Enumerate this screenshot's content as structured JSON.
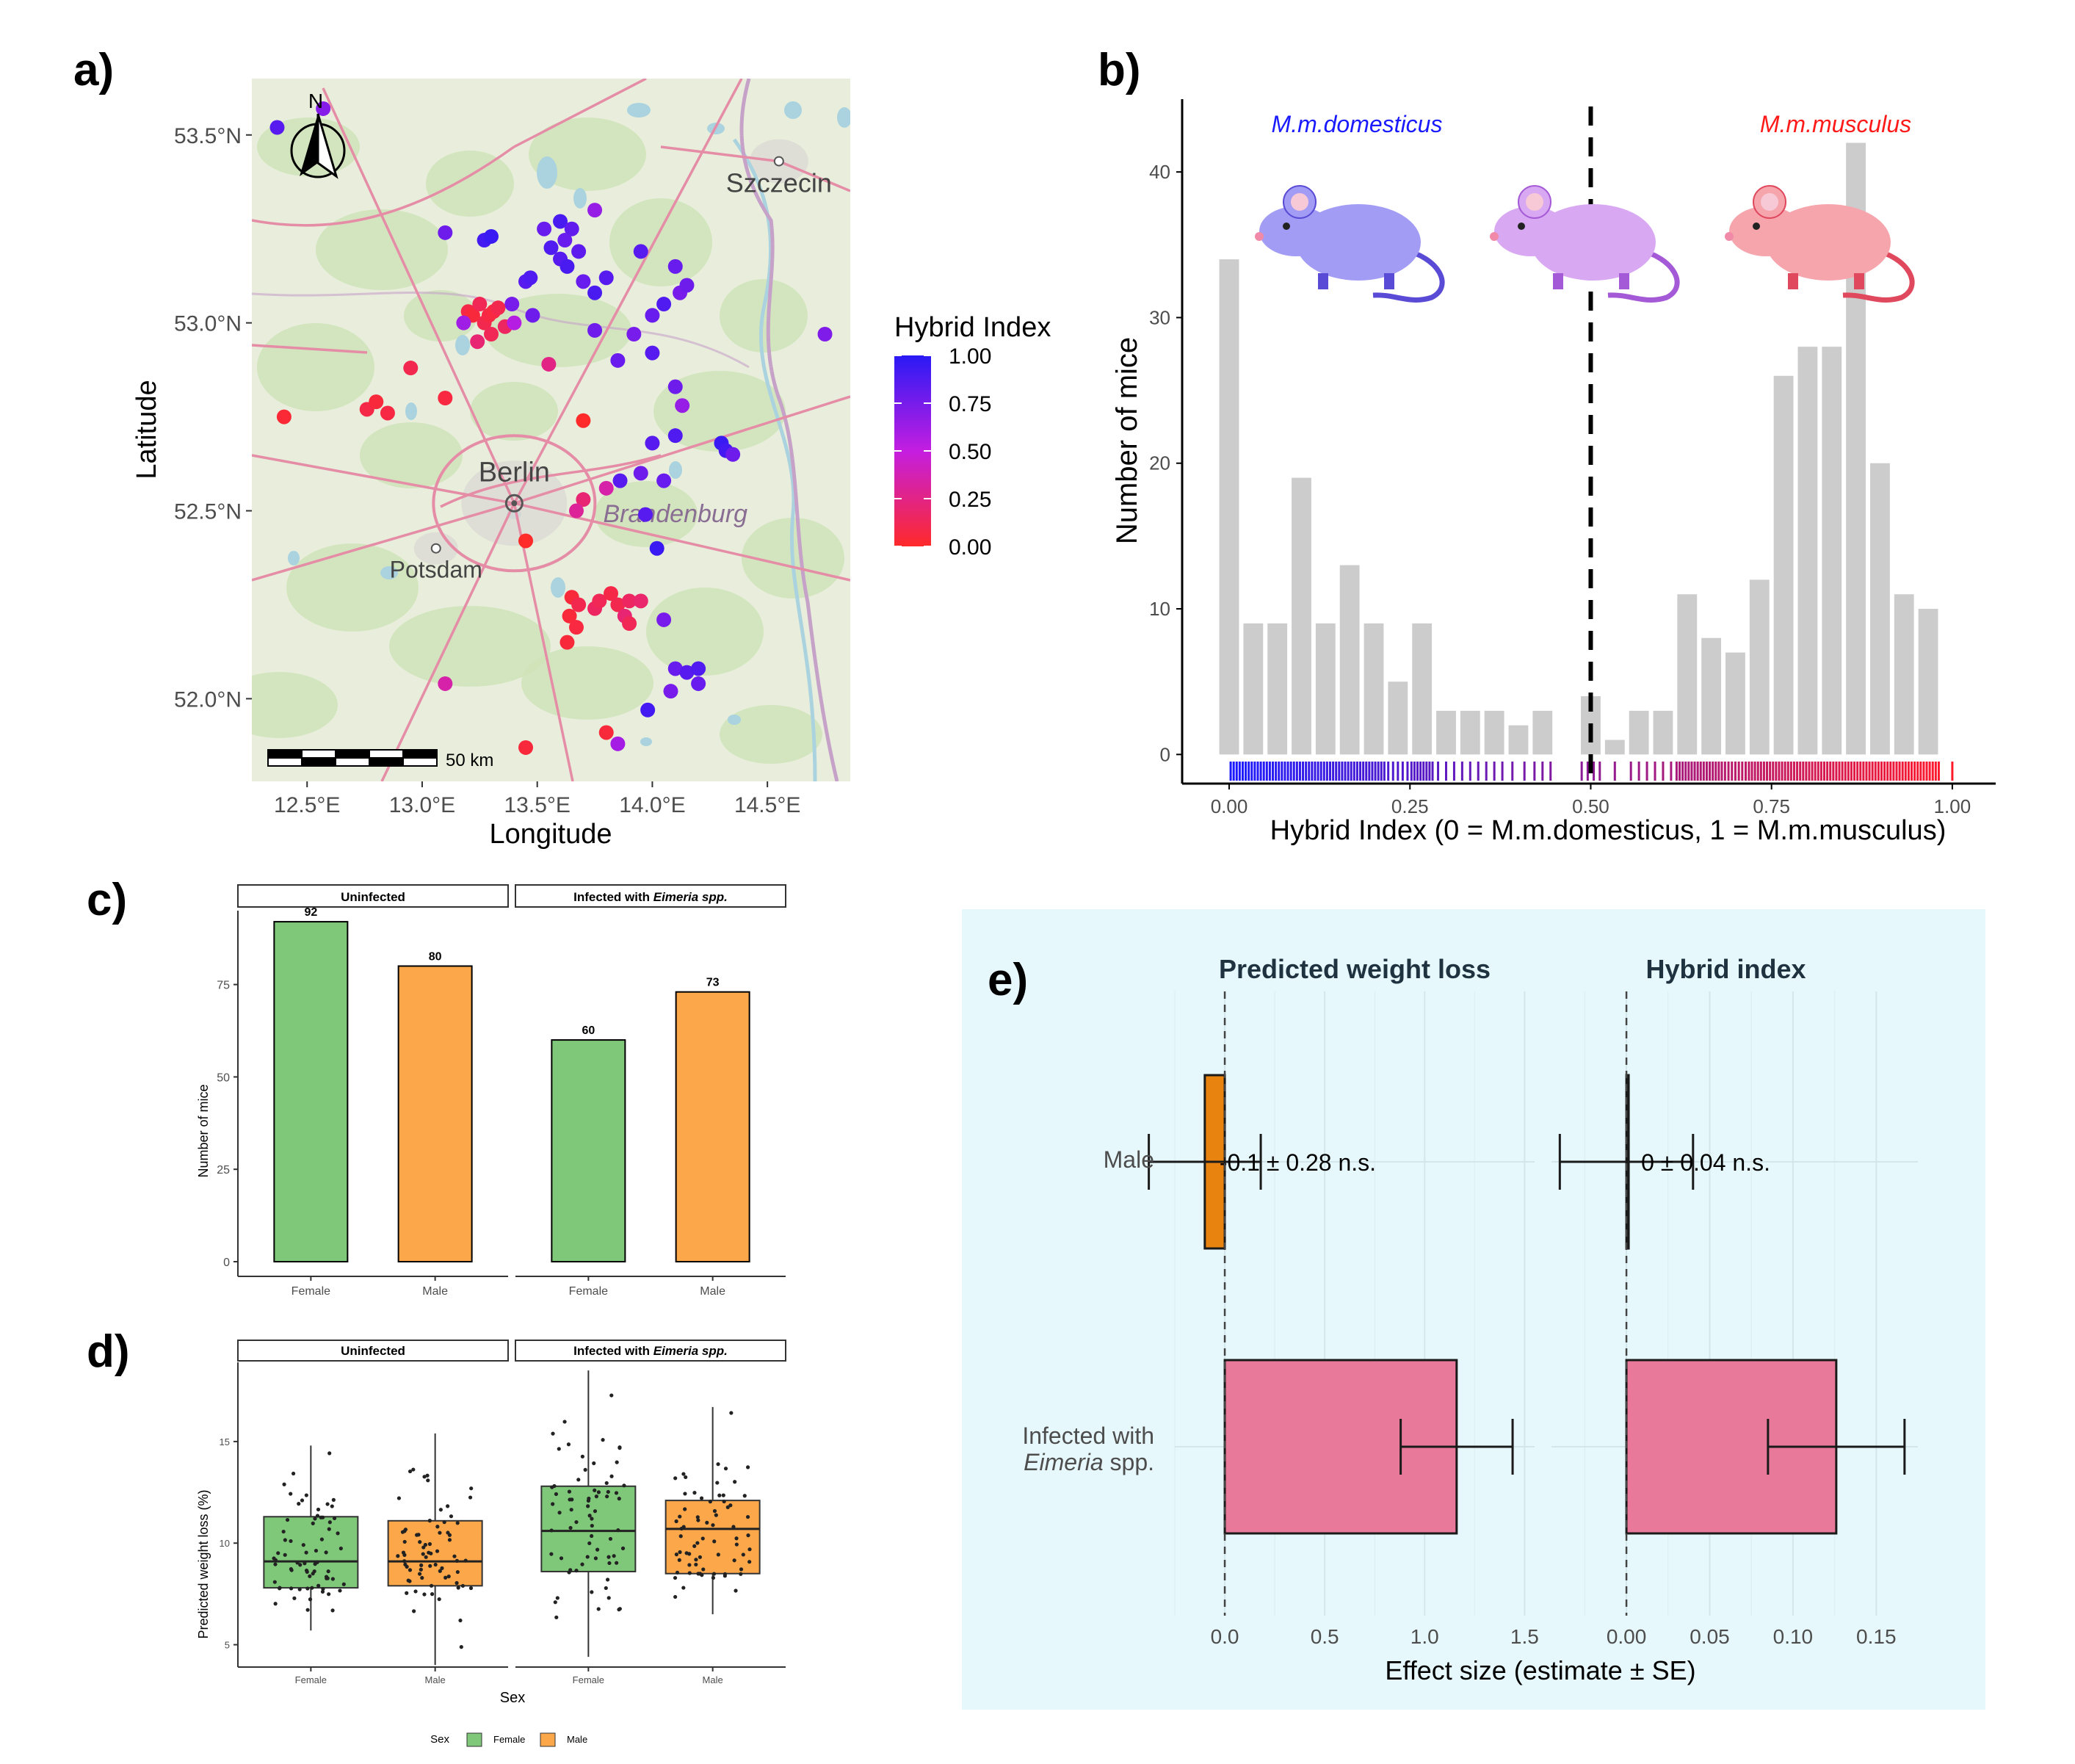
{
  "panels": {
    "a": "a)",
    "b": "b)",
    "c": "c)",
    "d": "d)",
    "e": "e)"
  },
  "map": {
    "xlabel": "Longitude",
    "ylabel": "Latitude",
    "xticks": [
      "12.5°E",
      "13.0°E",
      "13.5°E",
      "14.0°E",
      "14.5°E"
    ],
    "xtick_values": [
      12.5,
      13.0,
      13.5,
      14.0,
      14.5
    ],
    "yticks": [
      "52.0°N",
      "52.5°N",
      "53.0°N",
      "53.5°N"
    ],
    "ytick_values": [
      52.0,
      52.5,
      53.0,
      53.5
    ],
    "xlim": [
      12.26,
      14.86
    ],
    "ylim": [
      51.78,
      53.65
    ],
    "places": [
      {
        "name": "Berlin",
        "lon": 13.4,
        "lat": 52.52,
        "type": "capital"
      },
      {
        "name": "Potsdam",
        "lon": 13.06,
        "lat": 52.4,
        "type": "city"
      },
      {
        "name": "Szczecin",
        "lon": 14.55,
        "lat": 53.43,
        "type": "city"
      },
      {
        "name": "Brandenburg",
        "lon": 14.1,
        "lat": 52.47,
        "type": "region"
      }
    ],
    "north_label": "N",
    "scale_label": "50 km",
    "legend": {
      "title": "Hybrid Index",
      "ticks": [
        "1.00",
        "0.75",
        "0.50",
        "0.25",
        "0.00"
      ],
      "tick_values": [
        1.0,
        0.75,
        0.5,
        0.25,
        0.0
      ]
    },
    "colors": {
      "low": "#ff2a2a",
      "mid": "#c41ee0",
      "high": "#2a1af5",
      "land": "#e8eedb",
      "forest": "#cfe3b8",
      "water": "#aad3df",
      "road": "#e58ca6",
      "border": "#c6a2c9"
    },
    "points": [
      [
        12.37,
        53.52,
        0.85
      ],
      [
        12.57,
        53.57,
        0.7
      ],
      [
        13.1,
        53.24,
        0.78
      ],
      [
        13.27,
        53.22,
        0.92
      ],
      [
        13.3,
        53.23,
        0.95
      ],
      [
        13.6,
        53.27,
        0.9
      ],
      [
        13.65,
        53.25,
        0.82
      ],
      [
        13.75,
        53.3,
        0.65
      ],
      [
        13.53,
        53.25,
        0.8
      ],
      [
        13.56,
        53.2,
        0.88
      ],
      [
        13.62,
        53.22,
        0.8
      ],
      [
        13.68,
        53.19,
        0.83
      ],
      [
        13.6,
        53.17,
        0.85
      ],
      [
        13.63,
        53.15,
        0.9
      ],
      [
        13.95,
        53.19,
        0.85
      ],
      [
        14.1,
        53.15,
        0.8
      ],
      [
        14.12,
        53.08,
        0.75
      ],
      [
        14.15,
        53.1,
        0.78
      ],
      [
        14.05,
        53.05,
        0.88
      ],
      [
        14.0,
        53.02,
        0.8
      ],
      [
        13.45,
        53.11,
        0.85
      ],
      [
        13.47,
        53.12,
        0.88
      ],
      [
        13.39,
        53.05,
        0.75
      ],
      [
        13.48,
        53.02,
        0.78
      ],
      [
        13.7,
        53.11,
        0.8
      ],
      [
        13.8,
        53.12,
        0.85
      ],
      [
        13.75,
        53.08,
        0.9
      ],
      [
        13.27,
        53.0,
        0.1
      ],
      [
        13.2,
        53.03,
        0.08
      ],
      [
        13.22,
        53.02,
        0.05
      ],
      [
        13.25,
        53.05,
        0.12
      ],
      [
        13.29,
        53.02,
        0.07
      ],
      [
        13.31,
        53.03,
        0.06
      ],
      [
        13.33,
        53.04,
        0.1
      ],
      [
        13.36,
        52.99,
        0.15
      ],
      [
        13.3,
        52.97,
        0.12
      ],
      [
        13.24,
        52.95,
        0.2
      ],
      [
        13.18,
        53.0,
        0.62
      ],
      [
        13.4,
        53.0,
        0.55
      ],
      [
        13.55,
        52.89,
        0.25
      ],
      [
        13.75,
        52.98,
        0.78
      ],
      [
        13.92,
        52.97,
        0.75
      ],
      [
        13.85,
        52.9,
        0.8
      ],
      [
        14.0,
        52.92,
        0.85
      ],
      [
        14.1,
        52.83,
        0.78
      ],
      [
        14.13,
        52.78,
        0.65
      ],
      [
        14.1,
        52.7,
        0.88
      ],
      [
        14.0,
        52.68,
        0.85
      ],
      [
        13.95,
        52.6,
        0.78
      ],
      [
        14.05,
        52.58,
        0.8
      ],
      [
        13.86,
        52.58,
        0.85
      ],
      [
        14.3,
        52.68,
        0.95
      ],
      [
        14.32,
        52.66,
        0.92
      ],
      [
        14.35,
        52.65,
        0.78
      ],
      [
        14.75,
        52.97,
        0.72
      ],
      [
        12.95,
        52.88,
        0.1
      ],
      [
        12.76,
        52.77,
        0.08
      ],
      [
        12.8,
        52.79,
        0.05
      ],
      [
        12.85,
        52.76,
        0.07
      ],
      [
        12.4,
        52.75,
        0.03
      ],
      [
        13.1,
        52.8,
        0.06
      ],
      [
        13.7,
        52.74,
        0.0
      ],
      [
        13.7,
        52.53,
        0.2
      ],
      [
        13.67,
        52.5,
        0.3
      ],
      [
        13.8,
        52.56,
        0.35
      ],
      [
        13.97,
        52.49,
        0.85
      ],
      [
        13.45,
        52.42,
        0.0
      ],
      [
        14.02,
        52.4,
        0.95
      ],
      [
        13.65,
        52.27,
        0.05
      ],
      [
        13.68,
        52.25,
        0.1
      ],
      [
        13.64,
        52.22,
        0.04
      ],
      [
        13.67,
        52.19,
        0.06
      ],
      [
        13.75,
        52.24,
        0.15
      ],
      [
        13.77,
        52.26,
        0.12
      ],
      [
        13.82,
        52.28,
        0.08
      ],
      [
        13.85,
        52.25,
        0.1
      ],
      [
        13.9,
        52.26,
        0.15
      ],
      [
        13.88,
        52.22,
        0.2
      ],
      [
        13.95,
        52.26,
        0.18
      ],
      [
        13.9,
        52.2,
        0.12
      ],
      [
        13.63,
        52.15,
        0.05
      ],
      [
        14.05,
        52.21,
        0.75
      ],
      [
        14.1,
        52.08,
        0.8
      ],
      [
        14.15,
        52.07,
        0.85
      ],
      [
        14.2,
        52.08,
        0.88
      ],
      [
        14.2,
        52.04,
        0.8
      ],
      [
        14.08,
        52.02,
        0.75
      ],
      [
        13.98,
        51.97,
        0.92
      ],
      [
        13.1,
        52.04,
        0.35
      ],
      [
        13.45,
        51.87,
        0.05
      ],
      [
        13.8,
        51.91,
        0.05
      ],
      [
        13.85,
        51.88,
        0.6
      ]
    ]
  },
  "chart_data": [
    {
      "panel": "b",
      "type": "bar",
      "ylabel": "Number of mice",
      "xlabel": "Hybrid Index (0 = M.m.domesticus, 1 = M.m.musculus)",
      "annotations": {
        "left": "M.m.domesticus",
        "right": "M.m.musculus"
      },
      "annotation_colors": {
        "left": "#1a1aff",
        "right": "#ff1a1a"
      },
      "xlim": [
        -0.065,
        1.06
      ],
      "ylim": [
        -2,
        45
      ],
      "xticks": [
        "0.00",
        "0.25",
        "0.50",
        "0.75",
        "1.00"
      ],
      "xtick_values": [
        0,
        0.25,
        0.5,
        0.75,
        1.0
      ],
      "yticks": [
        "0",
        "10",
        "20",
        "30",
        "40"
      ],
      "ytick_values": [
        0,
        10,
        20,
        30,
        40
      ],
      "bin_centers": [
        0.0,
        0.03333,
        0.06667,
        0.1,
        0.13333,
        0.16667,
        0.2,
        0.23333,
        0.26667,
        0.3,
        0.33333,
        0.36667,
        0.4,
        0.43333,
        0.5,
        0.53333,
        0.56667,
        0.6,
        0.63333,
        0.66667,
        0.7,
        0.73333,
        0.76667,
        0.8,
        0.83333,
        0.86667,
        0.9,
        0.93333,
        0.96667,
        1.0
      ],
      "values": [
        34,
        9,
        9,
        19,
        9,
        13,
        9,
        5,
        9,
        3,
        3,
        3,
        2,
        3,
        4,
        1,
        3,
        3,
        11,
        8,
        7,
        12,
        26,
        28,
        28,
        42,
        20,
        11,
        10,
        0
      ],
      "dashed_line_x": 0.5,
      "rug_colors": {
        "low": "#ff1a2a",
        "high": "#1a1aff"
      }
    },
    {
      "panel": "c",
      "type": "bar",
      "ylabel": "Number of mice",
      "facets": [
        {
          "title": "Uninfected",
          "title_italic": "",
          "categories": [
            "Female",
            "Male"
          ],
          "values": [
            92,
            80
          ]
        },
        {
          "title": "Infected with ",
          "title_italic": "Eimeria spp.",
          "categories": [
            "Female",
            "Male"
          ],
          "values": [
            60,
            73
          ]
        }
      ],
      "ylim": [
        0,
        95
      ],
      "yticks": [
        "0",
        "25",
        "50",
        "75"
      ],
      "ytick_values": [
        0,
        25,
        50,
        75
      ],
      "colors": {
        "Female": "#7fc87a",
        "Male": "#fba74a"
      }
    },
    {
      "panel": "d",
      "type": "box",
      "ylabel": "Predicted weight loss (%)",
      "xlabel": "Sex",
      "ylim": [
        3.9,
        18.9
      ],
      "yticks": [
        "5",
        "10",
        "15"
      ],
      "ytick_values": [
        5,
        10,
        15
      ],
      "facets": [
        {
          "title": "Uninfected",
          "title_italic": "",
          "boxes": [
            {
              "category": "Female",
              "min": 5.7,
              "q1": 7.8,
              "median": 9.1,
              "q3": 11.3,
              "max": 14.8
            },
            {
              "category": "Male",
              "min": 4.0,
              "q1": 7.9,
              "median": 9.1,
              "q3": 11.1,
              "max": 15.4
            }
          ]
        },
        {
          "title": "Infected with ",
          "title_italic": "Eimeria spp.",
          "boxes": [
            {
              "category": "Female",
              "min": 4.4,
              "q1": 8.6,
              "median": 10.6,
              "q3": 12.8,
              "max": 18.5
            },
            {
              "category": "Male",
              "min": 6.5,
              "q1": 8.5,
              "median": 10.7,
              "q3": 12.1,
              "max": 16.7
            }
          ]
        }
      ],
      "legend": {
        "title": "Sex",
        "items": [
          "Female",
          "Male"
        ]
      },
      "colors": {
        "Female": "#7fc87a",
        "Male": "#fba74a"
      }
    },
    {
      "panel": "e",
      "type": "bar",
      "xlabel": "Effect size (estimate ± SE)",
      "categories": [
        "Male",
        "Infected with",
        "Eimeria spp."
      ],
      "facets": [
        {
          "title": "Predicted weight loss",
          "xlim": [
            -0.25,
            1.55
          ],
          "xticks": [
            "0.0",
            "0.5",
            "1.0",
            "1.5"
          ],
          "xtick_values": [
            0,
            0.5,
            1.0,
            1.5
          ],
          "bars": [
            {
              "category": "Male",
              "estimate": -0.1,
              "se": 0.28,
              "label": "-0.1 ± 0.28 n.s.",
              "color": "#e8830f"
            },
            {
              "category": "Infected",
              "estimate": 1.16,
              "se": 0.28,
              "label": "",
              "color": "#e8799a"
            }
          ]
        },
        {
          "title": "Hybrid index",
          "xlim": [
            -0.045,
            0.175
          ],
          "xticks": [
            "0.00",
            "0.05",
            "0.10",
            "0.15"
          ],
          "xtick_values": [
            0,
            0.05,
            0.1,
            0.15
          ],
          "bars": [
            {
              "category": "Male",
              "estimate": 0.0,
              "se": 0.04,
              "label": "0 ± 0.04 n.s.",
              "color": "#e8830f"
            },
            {
              "category": "Infected",
              "estimate": 0.126,
              "se": 0.041,
              "label": "",
              "color": "#e8799a"
            }
          ]
        }
      ],
      "background": "#e7f8fc"
    }
  ]
}
